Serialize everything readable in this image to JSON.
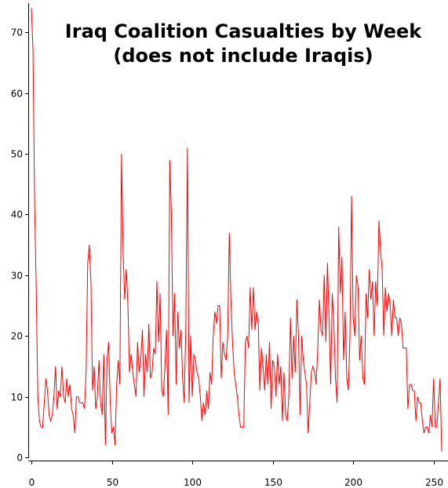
{
  "chart_data": {
    "type": "line",
    "title": "Iraq Coalition Casualties by Week",
    "subtitle": "(does not include Iraqis)",
    "xlabel": "",
    "ylabel": "",
    "xlim": [
      0,
      260
    ],
    "ylim": [
      0,
      75
    ],
    "x_ticks": [
      0,
      50,
      100,
      150,
      200,
      250
    ],
    "y_ticks": [
      0,
      10,
      20,
      30,
      40,
      50,
      60,
      70
    ],
    "grid": false,
    "legend": "none",
    "series": [
      {
        "color": "#ff0000",
        "values": [
          74,
          67,
          42,
          28,
          10,
          6,
          5,
          5,
          9,
          13,
          11,
          7,
          6,
          7,
          10,
          15,
          8,
          11,
          10,
          15,
          10,
          9,
          13,
          10,
          12,
          8,
          7,
          4,
          10,
          10,
          9,
          9,
          9,
          8,
          14,
          32,
          35,
          29,
          11,
          15,
          8,
          10,
          16,
          9,
          7,
          17,
          2,
          16,
          19,
          9,
          4,
          5,
          2,
          12,
          16,
          12,
          50,
          34,
          26,
          31,
          25,
          14,
          17,
          14,
          12,
          10,
          19,
          14,
          16,
          21,
          10,
          17,
          14,
          22,
          13,
          14,
          18,
          17,
          29,
          19,
          27,
          11,
          10,
          15,
          21,
          7,
          49,
          40,
          20,
          27,
          12,
          24,
          18,
          21,
          13,
          9,
          22,
          51,
          9,
          20,
          10,
          17,
          16,
          14,
          13,
          10,
          6,
          9,
          7,
          11,
          8,
          14,
          12,
          20,
          24,
          22,
          25,
          25,
          13,
          19,
          17,
          16,
          20,
          37,
          26,
          19,
          14,
          12,
          10,
          7,
          5,
          5,
          5,
          19,
          20,
          18,
          28,
          21,
          28,
          21,
          24,
          22,
          11,
          18,
          15,
          11,
          17,
          12,
          19,
          8,
          16,
          15,
          10,
          17,
          12,
          15,
          6,
          14,
          7,
          6,
          10,
          23,
          13,
          20,
          14,
          26,
          20,
          7,
          20,
          16,
          14,
          12,
          4,
          9,
          14,
          15,
          14,
          12,
          18,
          26,
          21,
          20,
          30,
          19,
          32,
          23,
          12,
          27,
          22,
          13,
          9,
          38,
          27,
          33,
          16,
          24,
          13,
          11,
          20,
          43,
          23,
          20,
          30,
          28,
          16,
          20,
          13,
          12,
          27,
          23,
          31,
          26,
          29,
          20,
          29,
          25,
          39,
          34,
          31,
          20,
          28,
          24,
          27,
          25,
          20,
          26,
          23,
          23,
          20,
          23,
          22,
          18,
          18,
          18,
          8,
          12,
          12,
          11,
          11,
          6,
          10,
          9,
          9,
          6,
          4,
          5,
          5,
          4,
          7,
          5,
          13,
          5,
          5,
          9,
          13,
          1
        ]
      }
    ]
  }
}
